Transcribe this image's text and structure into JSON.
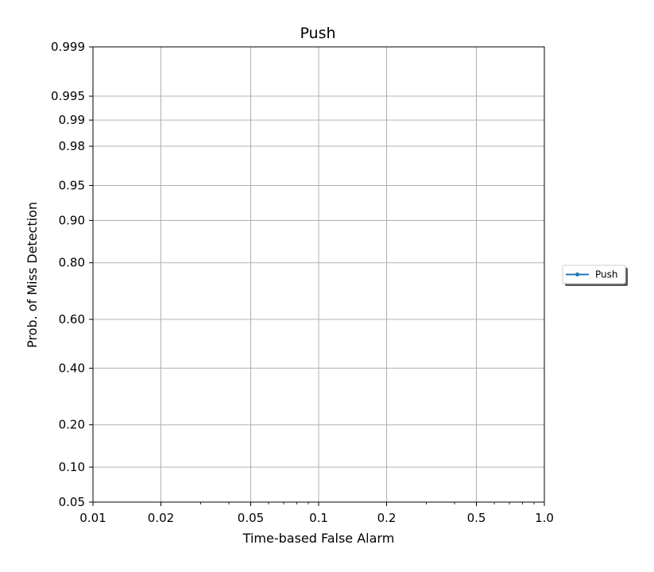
{
  "chart_data": {
    "type": "line",
    "title": "Push",
    "xlabel": "Time-based False Alarm",
    "ylabel": "Prob. of Miss Detection",
    "x_scale": "log",
    "y_scale": "probit",
    "xlim": [
      0.01,
      1.0
    ],
    "ylim": [
      0.05,
      0.999
    ],
    "x_ticks": [
      {
        "value": 0.01,
        "label": "0.01"
      },
      {
        "value": 0.02,
        "label": "0.02"
      },
      {
        "value": 0.05,
        "label": "0.05"
      },
      {
        "value": 0.1,
        "label": "0.1"
      },
      {
        "value": 0.2,
        "label": "0.2"
      },
      {
        "value": 0.5,
        "label": "0.5"
      },
      {
        "value": 1.0,
        "label": "1.0"
      }
    ],
    "y_ticks": [
      {
        "value": 0.05,
        "label": "0.05"
      },
      {
        "value": 0.1,
        "label": "0.10"
      },
      {
        "value": 0.2,
        "label": "0.20"
      },
      {
        "value": 0.4,
        "label": "0.40"
      },
      {
        "value": 0.6,
        "label": "0.60"
      },
      {
        "value": 0.8,
        "label": "0.80"
      },
      {
        "value": 0.9,
        "label": "0.90"
      },
      {
        "value": 0.95,
        "label": "0.95"
      },
      {
        "value": 0.98,
        "label": "0.98"
      },
      {
        "value": 0.99,
        "label": "0.99"
      },
      {
        "value": 0.995,
        "label": "0.995"
      },
      {
        "value": 0.999,
        "label": "0.999"
      }
    ],
    "grid": true,
    "legend_position": "right, outside plot",
    "series": [
      {
        "name": "Push",
        "color": "#1f77b4",
        "marker": "circle",
        "x": [],
        "y": []
      }
    ]
  }
}
